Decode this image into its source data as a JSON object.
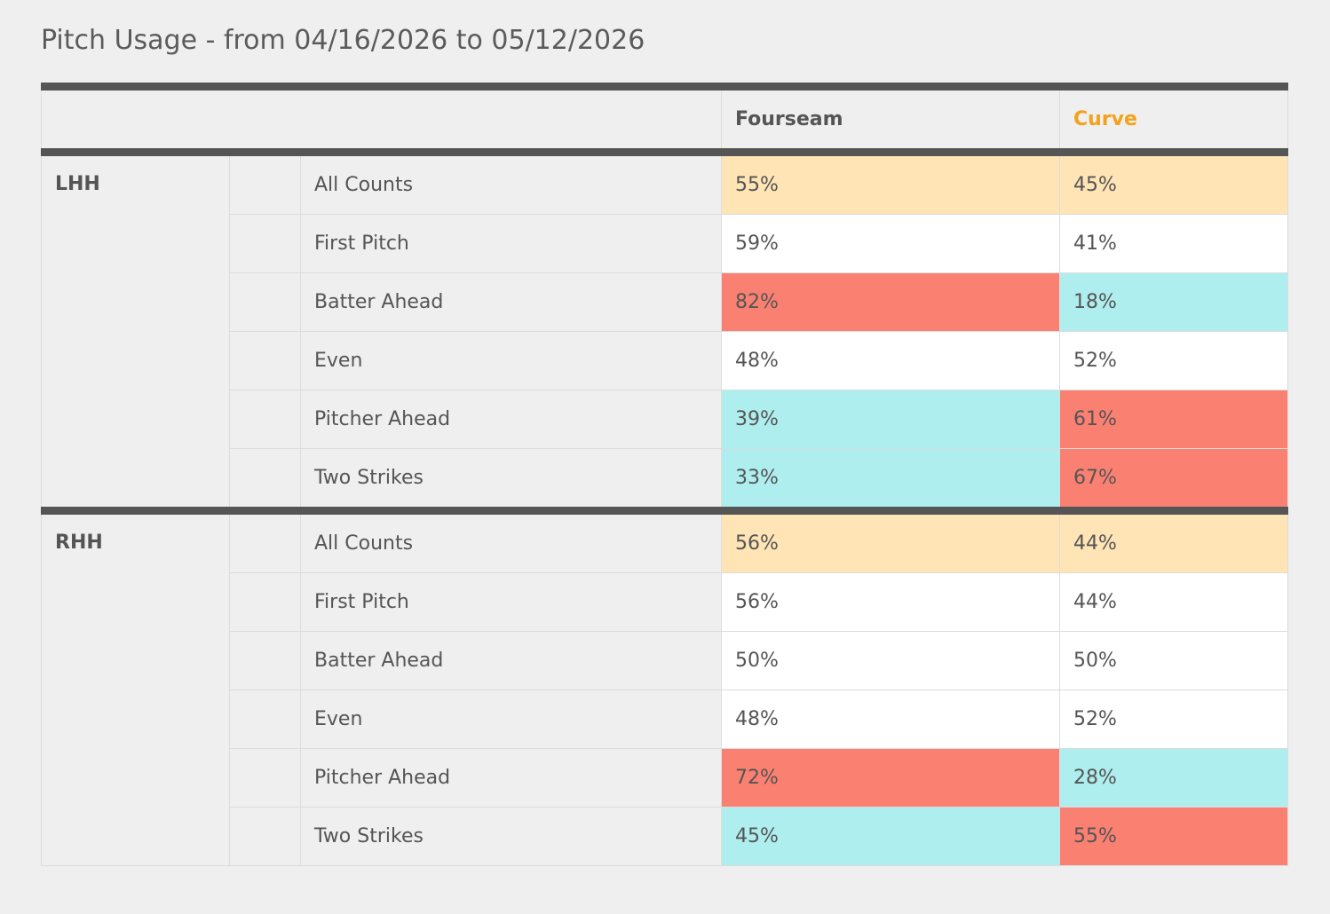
{
  "title": "Pitch Usage - from 04/16/2026 to 05/12/2026",
  "colors": {
    "highlight_all_counts": "#ffe4b5",
    "high": "#fa8072",
    "low": "#afeeee",
    "neutral": "#ffffff",
    "curve_header": "#f3a21b"
  },
  "chart_data": {
    "type": "table",
    "title": "Pitch Usage - from 04/16/2026 to 05/12/2026",
    "columns": [
      "Fourseam",
      "Curve"
    ],
    "groups": [
      {
        "hand": "LHH",
        "rows": [
          {
            "count": "All Counts",
            "values": [
              "55%",
              "45%"
            ],
            "fills": [
              "highlight",
              "highlight"
            ]
          },
          {
            "count": "First Pitch",
            "values": [
              "59%",
              "41%"
            ],
            "fills": [
              "neutral",
              "neutral"
            ]
          },
          {
            "count": "Batter Ahead",
            "values": [
              "82%",
              "18%"
            ],
            "fills": [
              "high",
              "low"
            ]
          },
          {
            "count": "Even",
            "values": [
              "48%",
              "52%"
            ],
            "fills": [
              "neutral",
              "neutral"
            ]
          },
          {
            "count": "Pitcher Ahead",
            "values": [
              "39%",
              "61%"
            ],
            "fills": [
              "low",
              "high"
            ]
          },
          {
            "count": "Two Strikes",
            "values": [
              "33%",
              "67%"
            ],
            "fills": [
              "low",
              "high"
            ]
          }
        ]
      },
      {
        "hand": "RHH",
        "rows": [
          {
            "count": "All Counts",
            "values": [
              "56%",
              "44%"
            ],
            "fills": [
              "highlight",
              "highlight"
            ]
          },
          {
            "count": "First Pitch",
            "values": [
              "56%",
              "44%"
            ],
            "fills": [
              "neutral",
              "neutral"
            ]
          },
          {
            "count": "Batter Ahead",
            "values": [
              "50%",
              "50%"
            ],
            "fills": [
              "neutral",
              "neutral"
            ]
          },
          {
            "count": "Even",
            "values": [
              "48%",
              "52%"
            ],
            "fills": [
              "neutral",
              "neutral"
            ]
          },
          {
            "count": "Pitcher Ahead",
            "values": [
              "72%",
              "28%"
            ],
            "fills": [
              "high",
              "low"
            ]
          },
          {
            "count": "Two Strikes",
            "values": [
              "45%",
              "55%"
            ],
            "fills": [
              "low",
              "high"
            ]
          }
        ]
      }
    ]
  }
}
